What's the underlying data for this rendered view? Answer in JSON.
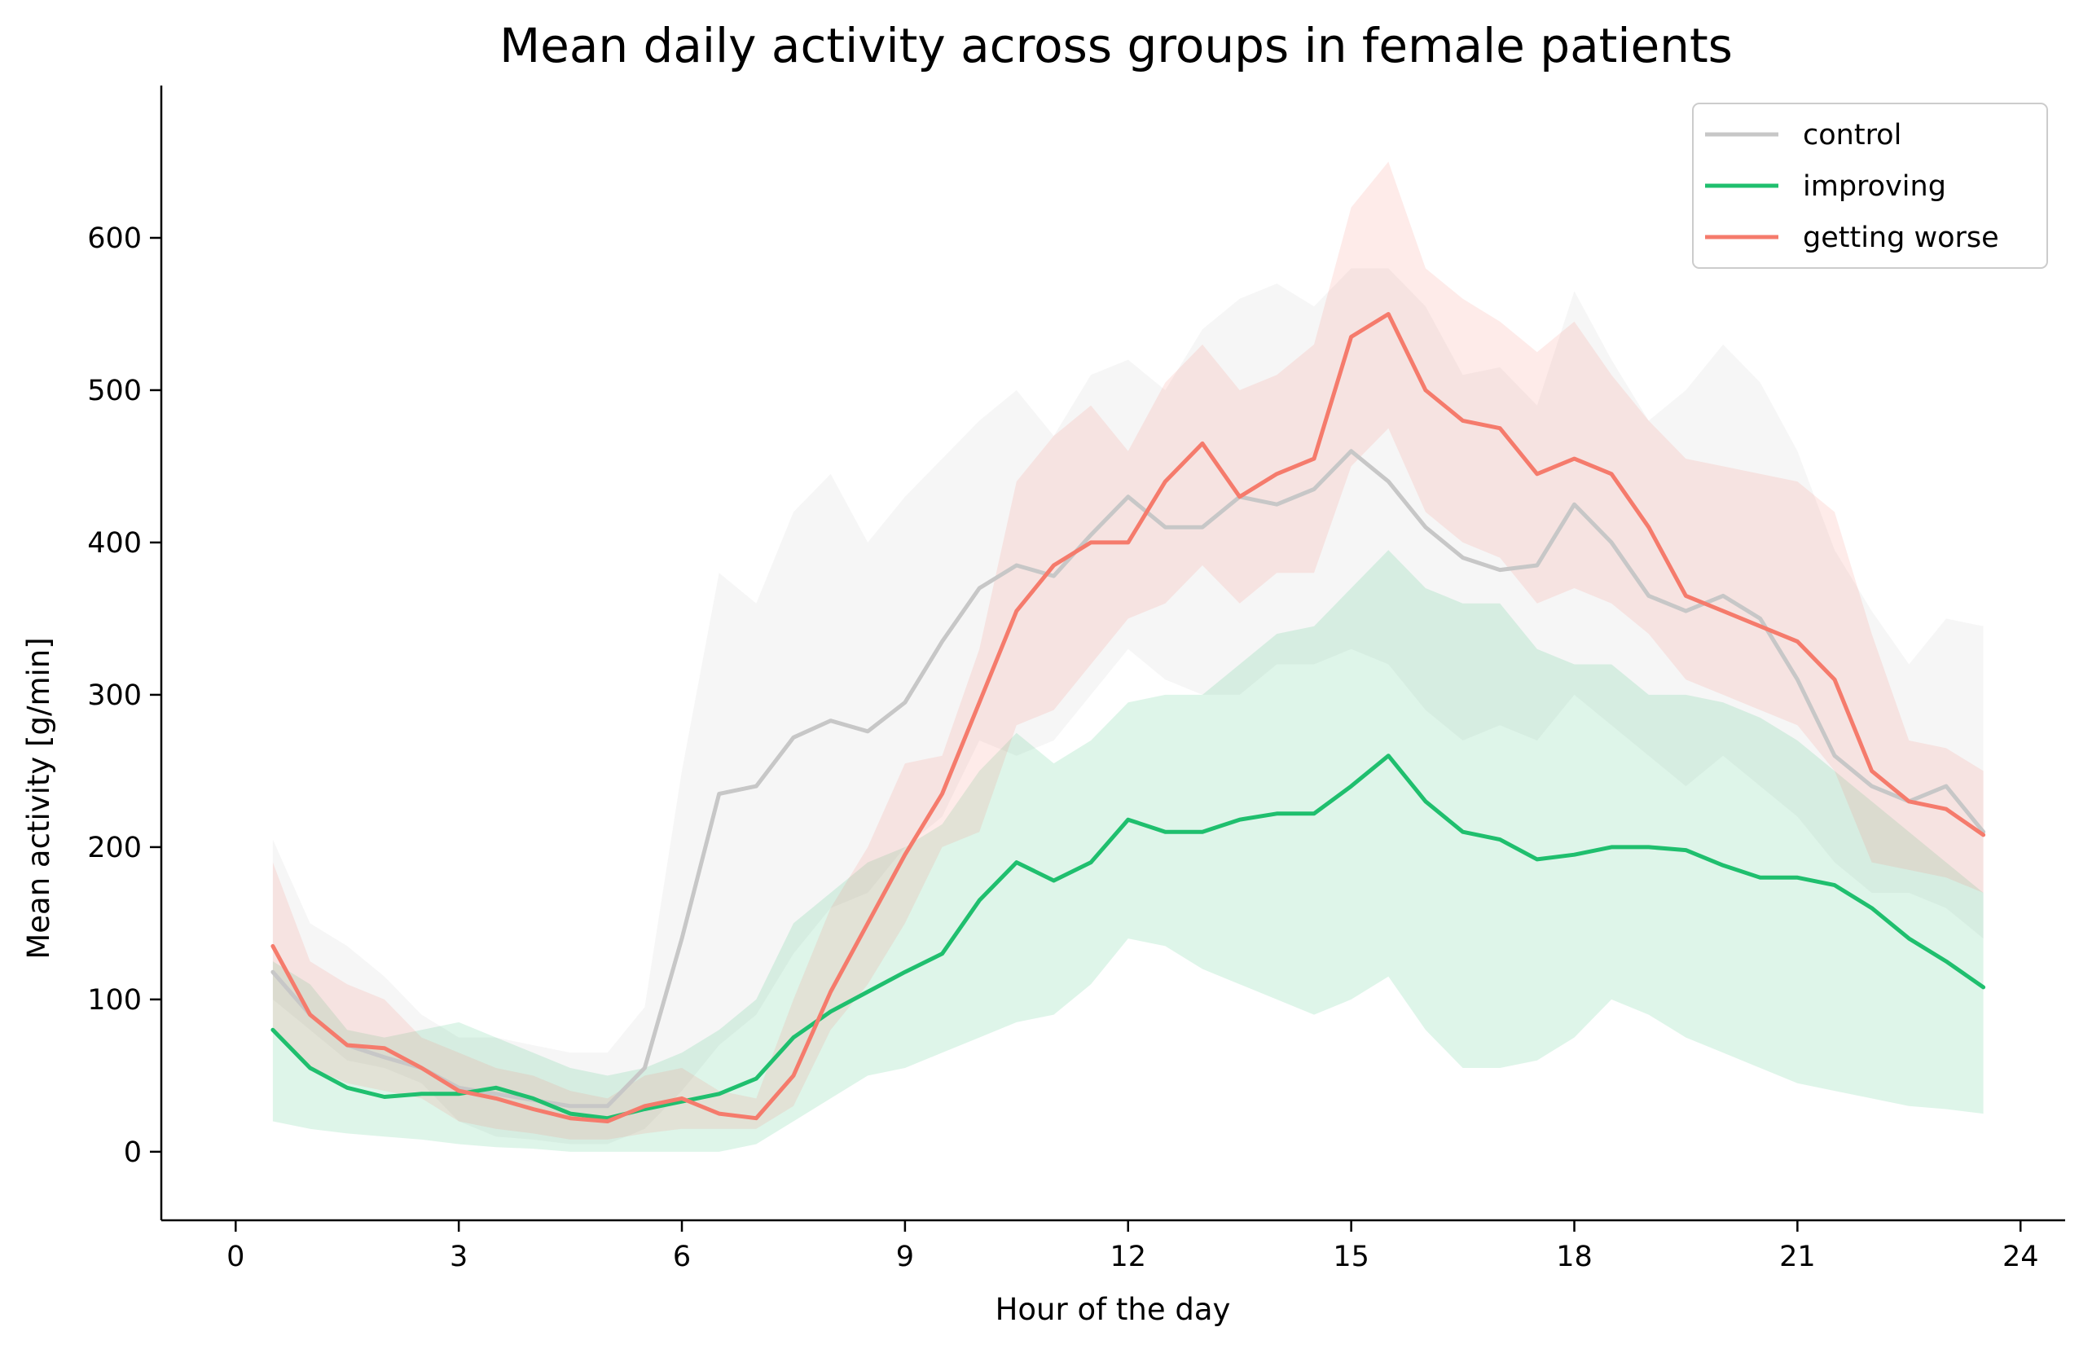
{
  "chart_data": {
    "type": "line",
    "title": "Mean daily activity across groups in female patients",
    "xlabel": "Hour of the day",
    "ylabel": "Mean activity [g/min]",
    "xlim": [
      -1.0,
      24.6
    ],
    "ylim": [
      -45,
      700
    ],
    "xticks": [
      0,
      3,
      6,
      9,
      12,
      15,
      18,
      21,
      24
    ],
    "yticks": [
      0,
      100,
      200,
      300,
      400,
      500,
      600
    ],
    "grid": false,
    "legend_position": "top-right",
    "series": [
      {
        "name": "control",
        "color": "#c7c7c7",
        "x": [
          0.5,
          1.0,
          1.5,
          2.0,
          2.5,
          3.0,
          3.5,
          4.0,
          4.5,
          5.0,
          5.5,
          6.0,
          6.5,
          7.0,
          7.5,
          8.0,
          8.5,
          9.0,
          9.5,
          10.0,
          10.5,
          11.0,
          11.5,
          12.0,
          12.5,
          13.0,
          13.5,
          14.0,
          14.5,
          15.0,
          15.5,
          16.0,
          16.5,
          17.0,
          17.5,
          18.0,
          18.5,
          19.0,
          19.5,
          20.0,
          20.5,
          21.0,
          21.5,
          22.0,
          22.5,
          23.0,
          23.5
        ],
        "y": [
          118,
          90,
          70,
          62,
          55,
          42,
          38,
          34,
          30,
          30,
          55,
          140,
          235,
          240,
          272,
          283,
          276,
          295,
          335,
          370,
          385,
          378,
          405,
          430,
          410,
          410,
          430,
          425,
          435,
          460,
          440,
          410,
          390,
          382,
          385,
          425,
          400,
          365,
          355,
          365,
          350,
          310,
          260,
          240,
          230,
          240,
          210
        ],
        "lower": [
          100,
          80,
          60,
          55,
          45,
          20,
          10,
          8,
          5,
          5,
          15,
          40,
          70,
          90,
          130,
          160,
          170,
          200,
          220,
          270,
          260,
          270,
          300,
          330,
          310,
          300,
          300,
          320,
          320,
          330,
          320,
          290,
          270,
          280,
          270,
          300,
          280,
          260,
          240,
          260,
          240,
          220,
          190,
          170,
          170,
          160,
          140
        ],
        "upper": [
          205,
          150,
          135,
          115,
          90,
          75,
          75,
          70,
          65,
          65,
          95,
          250,
          380,
          360,
          420,
          445,
          400,
          430,
          455,
          480,
          500,
          470,
          510,
          520,
          500,
          540,
          560,
          570,
          555,
          580,
          580,
          555,
          510,
          515,
          490,
          565,
          520,
          480,
          500,
          530,
          505,
          460,
          395,
          355,
          320,
          350,
          345
        ]
      },
      {
        "name": "improving",
        "color": "#1fbf6e",
        "x": [
          0.5,
          1.0,
          1.5,
          2.0,
          2.5,
          3.0,
          3.5,
          4.0,
          4.5,
          5.0,
          5.5,
          6.0,
          6.5,
          7.0,
          7.5,
          8.0,
          8.5,
          9.0,
          9.5,
          10.0,
          10.5,
          11.0,
          11.5,
          12.0,
          12.5,
          13.0,
          13.5,
          14.0,
          14.5,
          15.0,
          15.5,
          16.0,
          16.5,
          17.0,
          17.5,
          18.0,
          18.5,
          19.0,
          19.5,
          20.0,
          20.5,
          21.0,
          21.5,
          22.0,
          22.5,
          23.0,
          23.5
        ],
        "y": [
          80,
          55,
          42,
          36,
          38,
          38,
          42,
          35,
          25,
          22,
          28,
          33,
          38,
          48,
          75,
          92,
          105,
          118,
          130,
          165,
          190,
          178,
          190,
          218,
          210,
          210,
          218,
          222,
          222,
          240,
          260,
          230,
          210,
          205,
          192,
          195,
          200,
          200,
          198,
          188,
          180,
          180,
          175,
          160,
          140,
          125,
          108
        ],
        "lower": [
          20,
          15,
          12,
          10,
          8,
          5,
          3,
          2,
          0,
          0,
          0,
          0,
          0,
          5,
          20,
          35,
          50,
          55,
          65,
          75,
          85,
          90,
          110,
          140,
          135,
          120,
          110,
          100,
          90,
          100,
          115,
          80,
          55,
          55,
          60,
          75,
          100,
          90,
          75,
          65,
          55,
          45,
          40,
          35,
          30,
          28,
          25
        ],
        "upper": [
          125,
          110,
          80,
          75,
          80,
          85,
          75,
          65,
          55,
          50,
          55,
          65,
          80,
          100,
          150,
          170,
          190,
          200,
          215,
          250,
          275,
          255,
          270,
          295,
          300,
          300,
          320,
          340,
          345,
          370,
          395,
          370,
          360,
          360,
          330,
          320,
          320,
          300,
          300,
          295,
          285,
          270,
          250,
          230,
          210,
          190,
          170
        ]
      },
      {
        "name": "getting worse",
        "color": "#f57b6c",
        "x": [
          0.5,
          1.0,
          1.5,
          2.0,
          2.5,
          3.0,
          3.5,
          4.0,
          4.5,
          5.0,
          5.5,
          6.0,
          6.5,
          7.0,
          7.5,
          8.0,
          8.5,
          9.0,
          9.5,
          10.0,
          10.5,
          11.0,
          11.5,
          12.0,
          12.5,
          13.0,
          13.5,
          14.0,
          14.5,
          15.0,
          15.5,
          16.0,
          16.5,
          17.0,
          17.5,
          18.0,
          18.5,
          19.0,
          19.5,
          20.0,
          20.5,
          21.0,
          21.5,
          22.0,
          22.5,
          23.0,
          23.5
        ],
        "y": [
          135,
          90,
          70,
          68,
          55,
          40,
          35,
          28,
          22,
          20,
          30,
          35,
          25,
          22,
          50,
          105,
          150,
          195,
          235,
          295,
          355,
          385,
          400,
          400,
          440,
          465,
          430,
          445,
          455,
          535,
          550,
          500,
          480,
          475,
          445,
          455,
          445,
          410,
          365,
          355,
          345,
          335,
          310,
          250,
          230,
          225,
          208
        ],
        "lower": [
          80,
          55,
          45,
          40,
          35,
          20,
          15,
          12,
          8,
          8,
          12,
          15,
          15,
          15,
          30,
          80,
          110,
          150,
          200,
          210,
          280,
          290,
          320,
          350,
          360,
          385,
          360,
          380,
          380,
          450,
          475,
          420,
          400,
          390,
          360,
          370,
          360,
          340,
          310,
          300,
          290,
          280,
          250,
          190,
          185,
          180,
          170
        ],
        "upper": [
          190,
          125,
          110,
          100,
          75,
          65,
          55,
          50,
          40,
          35,
          50,
          55,
          40,
          35,
          100,
          160,
          200,
          255,
          260,
          330,
          440,
          470,
          490,
          460,
          505,
          530,
          500,
          510,
          530,
          620,
          650,
          580,
          560,
          545,
          525,
          545,
          510,
          480,
          455,
          450,
          445,
          440,
          420,
          340,
          270,
          265,
          250
        ]
      }
    ]
  }
}
